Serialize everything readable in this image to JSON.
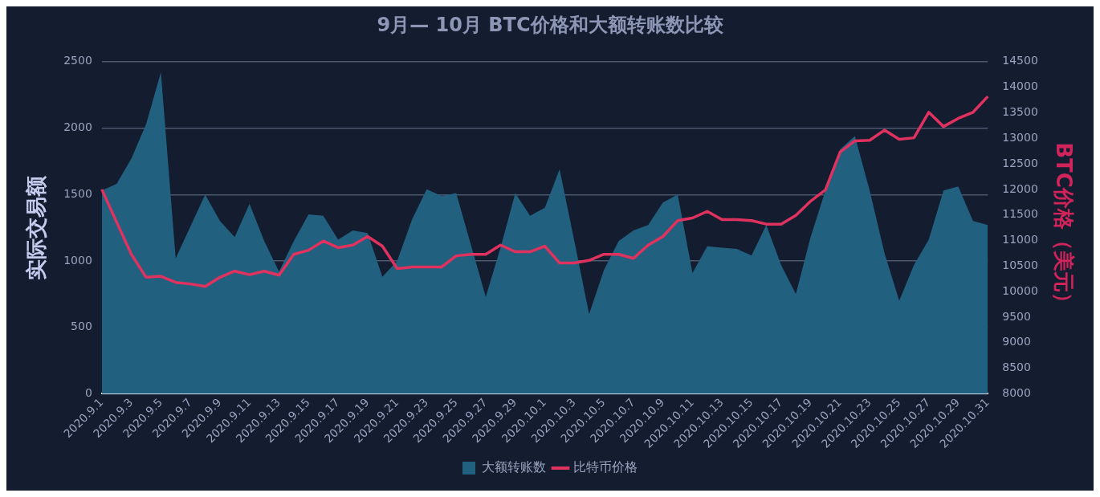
{
  "chart_data": {
    "type": "line",
    "title": "9月— 10月 BTC价格和大额转账数比较",
    "ylabel": "实际交易额",
    "y2label": "BTC价格（美元）",
    "categories": [
      "2020.9.1",
      null,
      "2020.9.3",
      null,
      "2020.9.5",
      null,
      "2020.9.7",
      null,
      "2020.9.9",
      null,
      "2020.9.11",
      null,
      "2020.9.13",
      null,
      "2020.9.15",
      null,
      "2020.9.17",
      null,
      "2020.9.19",
      null,
      "2020.9.21",
      null,
      "2020.9.23",
      null,
      "2020.9.25",
      null,
      "2020.9.27",
      null,
      "2020.9.29",
      null,
      "2020.10.1",
      null,
      "2020.10.3",
      null,
      "2020.10.5",
      null,
      "2020.10.7",
      null,
      "2020.10.9",
      null,
      "2020.10.11",
      null,
      "2020.10.13",
      null,
      "2020.10.15",
      null,
      "2020.10.17",
      null,
      "2020.10.19",
      null,
      "2020.10.21",
      null,
      "2020.10.23",
      null,
      "2020.10.25",
      null,
      "2020.10.27",
      null,
      "2020.10.29",
      null,
      "2020.10.31"
    ],
    "series": [
      {
        "name": "大额转账数",
        "type": "area",
        "color": "#22607f",
        "values": [
          1530,
          1580,
          1770,
          2030,
          2420,
          1020,
          1260,
          1500,
          1300,
          1180,
          1430,
          1150,
          920,
          1150,
          1350,
          1340,
          1160,
          1230,
          1210,
          880,
          1000,
          1310,
          1540,
          1490,
          1510,
          1120,
          730,
          1100,
          1510,
          1340,
          1400,
          1690,
          1150,
          600,
          930,
          1150,
          1230,
          1270,
          1440,
          1500,
          910,
          1110,
          1100,
          1090,
          1040,
          1270,
          970,
          750,
          1180,
          1530,
          1840,
          1940,
          1530,
          1060,
          700,
          970,
          1160,
          1530,
          1560,
          1300,
          1270
        ]
      },
      {
        "name": "比特币价格",
        "axis": "y2",
        "color": "#e0325f",
        "values": [
          12000,
          11360,
          10730,
          10280,
          10300,
          10180,
          10150,
          10100,
          10280,
          10400,
          10330,
          10400,
          10320,
          10730,
          10810,
          10990,
          10860,
          10910,
          11080,
          10890,
          10450,
          10480,
          10480,
          10480,
          10700,
          10730,
          10730,
          10910,
          10780,
          10780,
          10890,
          10560,
          10560,
          10610,
          10730,
          10730,
          10650,
          10910,
          11080,
          11390,
          11440,
          11570,
          11410,
          11410,
          11390,
          11320,
          11320,
          11490,
          11770,
          11990,
          12730,
          12950,
          12960,
          13160,
          12980,
          13010,
          13510,
          13230,
          13390,
          13510,
          13820
        ]
      }
    ],
    "ylim": [
      0,
      2500
    ],
    "yticks": [
      0,
      500,
      1000,
      1500,
      2000,
      2500
    ],
    "y2lim": [
      8000,
      14500
    ],
    "y2ticks": [
      8000,
      8500,
      9000,
      9500,
      10000,
      10500,
      11000,
      11500,
      12000,
      12500,
      13000,
      13500,
      14000,
      14500
    ],
    "grid": "y",
    "legend": "bottom",
    "marker": "none"
  }
}
